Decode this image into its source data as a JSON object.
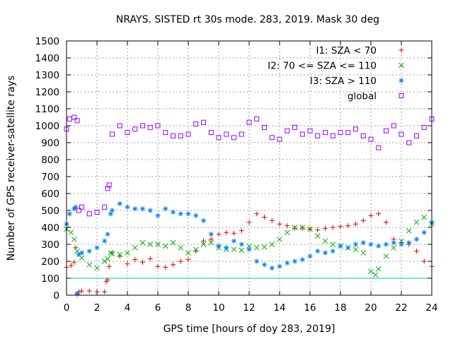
{
  "chart_data": {
    "type": "scatter",
    "title": "NRAYS. SISTED rt 30s mode. 283, 2019. Mask 30 deg",
    "xlabel": "GPS time [hours of doy 283, 2019]",
    "ylabel": "Number of GPS receiver-satellite rays",
    "xlim": [
      0,
      24
    ],
    "ylim": [
      0,
      1500
    ],
    "xticks": [
      "0",
      "2",
      "4",
      "6",
      "8",
      "10",
      "12",
      "14",
      "16",
      "18",
      "20",
      "22",
      "24"
    ],
    "yticks": [
      "0",
      "100",
      "200",
      "300",
      "400",
      "500",
      "600",
      "700",
      "800",
      "900",
      "1000",
      "1100",
      "1200",
      "1300",
      "1400",
      "1500"
    ],
    "grid": true,
    "legend_position": "top-right",
    "reference_line": {
      "y": 100,
      "color": "#00c0c0"
    },
    "series": [
      {
        "name": "I1: SZA < 70",
        "color": "#e00000",
        "marker": "plus",
        "x": [
          0,
          0.3,
          0.5,
          0.6,
          0.7,
          0.8,
          1.0,
          1.5,
          2.0,
          2.5,
          2.6,
          2.7,
          2.8,
          3.0,
          3.5,
          4.0,
          4.5,
          5.0,
          5.5,
          6.0,
          6.5,
          7.0,
          7.5,
          8.0,
          8.5,
          9.0,
          9.5,
          10.0,
          10.5,
          11.0,
          11.5,
          12.0,
          12.5,
          13.0,
          13.5,
          14.0,
          14.5,
          15.0,
          15.5,
          16.0,
          16.5,
          17.0,
          17.5,
          18.0,
          18.5,
          19.0,
          19.5,
          20.0,
          20.5,
          21.0,
          21.5,
          22.0,
          22.5,
          23.0,
          23.5,
          24.0
        ],
        "y": [
          165,
          175,
          195,
          280,
          5,
          20,
          25,
          25,
          20,
          20,
          80,
          90,
          170,
          250,
          230,
          185,
          210,
          195,
          215,
          170,
          165,
          180,
          200,
          210,
          260,
          320,
          330,
          360,
          370,
          365,
          380,
          430,
          480,
          460,
          440,
          420,
          410,
          395,
          395,
          390,
          385,
          395,
          400,
          405,
          410,
          420,
          440,
          470,
          480,
          430,
          330,
          310,
          300,
          260,
          200,
          170
        ]
      },
      {
        "name": "I2: 70 <= SZA <= 110",
        "color": "#00b000",
        "marker": "cross",
        "x": [
          0,
          0.3,
          0.5,
          0.7,
          1.0,
          1.5,
          2.0,
          2.5,
          2.7,
          2.9,
          3.0,
          3.5,
          4.0,
          4.5,
          5.0,
          5.5,
          6.0,
          6.5,
          7.0,
          7.5,
          8.0,
          8.5,
          9.0,
          9.5,
          10.0,
          10.5,
          11.0,
          11.5,
          12.0,
          12.5,
          13.0,
          13.5,
          14.0,
          14.5,
          15.0,
          15.5,
          16.0,
          16.5,
          17.0,
          17.5,
          18.0,
          18.5,
          19.0,
          19.5,
          20.0,
          20.3,
          20.5,
          21.0,
          21.5,
          22.0,
          22.5,
          23.0,
          23.5,
          24.0
        ],
        "y": [
          390,
          370,
          330,
          260,
          220,
          180,
          160,
          200,
          215,
          250,
          245,
          240,
          250,
          280,
          310,
          300,
          300,
          290,
          310,
          280,
          250,
          270,
          300,
          310,
          280,
          270,
          270,
          265,
          290,
          280,
          285,
          300,
          330,
          370,
          400,
          400,
          390,
          350,
          320,
          300,
          290,
          280,
          270,
          250,
          140,
          120,
          155,
          230,
          280,
          320,
          380,
          430,
          460,
          420
        ]
      },
      {
        "name": "I3: SZA > 110",
        "color": "#0080ff",
        "marker": "star",
        "x": [
          0,
          0.2,
          0.5,
          0.6,
          0.7,
          0.8,
          1.0,
          1.5,
          2.0,
          2.5,
          2.7,
          2.9,
          3.0,
          3.5,
          4.0,
          4.5,
          5.0,
          5.5,
          6.0,
          6.5,
          7.0,
          7.5,
          8.0,
          8.5,
          9.0,
          9.5,
          10.0,
          10.5,
          11.0,
          11.5,
          12.0,
          12.5,
          13.0,
          13.5,
          14.0,
          14.5,
          15.0,
          15.5,
          16.0,
          16.5,
          17.0,
          17.5,
          18.0,
          18.5,
          19.0,
          19.5,
          20.0,
          20.5,
          21.0,
          21.5,
          22.0,
          22.5,
          23.0,
          23.5,
          24.0
        ],
        "y": [
          420,
          480,
          510,
          520,
          10,
          240,
          250,
          260,
          280,
          320,
          360,
          480,
          500,
          540,
          520,
          510,
          510,
          500,
          470,
          510,
          490,
          480,
          480,
          470,
          440,
          360,
          290,
          280,
          320,
          300,
          270,
          200,
          180,
          160,
          170,
          190,
          200,
          210,
          230,
          260,
          250,
          260,
          290,
          280,
          300,
          310,
          300,
          290,
          300,
          310,
          300,
          310,
          330,
          370,
          430
        ]
      },
      {
        "name": "global",
        "color": "#a000ff",
        "marker": "square",
        "x": [
          0,
          0.2,
          0.5,
          0.7,
          0.8,
          1.0,
          1.5,
          2.0,
          2.5,
          2.7,
          2.8,
          3.0,
          3.5,
          4.0,
          4.5,
          5.0,
          5.5,
          6.0,
          6.5,
          7.0,
          7.5,
          8.0,
          8.5,
          9.0,
          9.5,
          10.0,
          10.5,
          11.0,
          11.5,
          12.0,
          12.5,
          13.0,
          13.5,
          14.0,
          14.5,
          15.0,
          15.5,
          16.0,
          16.5,
          17.0,
          17.5,
          18.0,
          18.5,
          19.0,
          19.5,
          20.0,
          20.5,
          21.0,
          21.5,
          22.0,
          22.5,
          23.0,
          23.5,
          24.0
        ],
        "y": [
          980,
          1040,
          1050,
          1030,
          500,
          520,
          480,
          490,
          520,
          630,
          650,
          950,
          1000,
          960,
          980,
          1000,
          990,
          1000,
          960,
          940,
          940,
          950,
          1010,
          1020,
          960,
          930,
          950,
          930,
          950,
          1020,
          1040,
          990,
          930,
          920,
          970,
          990,
          950,
          970,
          940,
          960,
          940,
          960,
          960,
          980,
          940,
          920,
          870,
          970,
          1000,
          950,
          900,
          940,
          990,
          1040
        ]
      }
    ]
  }
}
